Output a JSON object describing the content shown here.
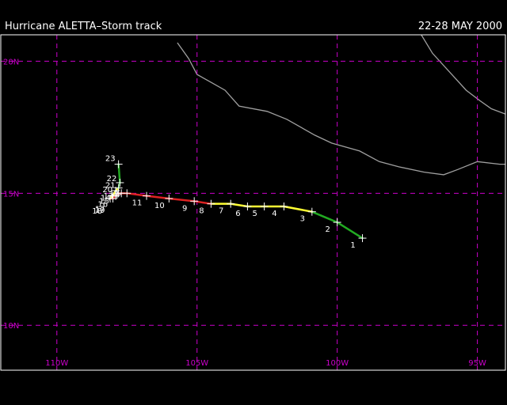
{
  "header": {
    "title": "Hurricane ALETTA–Storm track",
    "dates": "22-28 MAY 2000"
  },
  "colors": {
    "background": "#000000",
    "gridline": "#cc00cc",
    "coast": "#a0a0a0",
    "frame": "#ffffff",
    "text": "#ffffff",
    "tropical_depression": "#22aa22",
    "tropical_storm": "#ffff33",
    "hurricane": "#dd2222"
  },
  "map": {
    "lon_range": [
      -112,
      -94
    ],
    "lat_range": [
      8.3,
      21.0
    ],
    "lat_lines": [
      {
        "value": 20,
        "label": "20N"
      },
      {
        "value": 15,
        "label": "15N"
      },
      {
        "value": 10,
        "label": "10N"
      }
    ],
    "lon_lines": [
      {
        "value": -110,
        "label": "110W"
      },
      {
        "value": -105,
        "label": "105W"
      },
      {
        "value": -100,
        "label": "100W"
      },
      {
        "value": -95,
        "label": "95W"
      }
    ]
  },
  "coastlines": [
    [
      [
        -105.7,
        20.7
      ],
      [
        -105.3,
        20.1
      ],
      [
        -105.0,
        19.5
      ],
      [
        -104.5,
        19.2
      ],
      [
        -104.0,
        18.9
      ],
      [
        -103.5,
        18.3
      ],
      [
        -102.5,
        18.1
      ],
      [
        -101.8,
        17.8
      ],
      [
        -100.8,
        17.2
      ],
      [
        -100.2,
        16.9
      ],
      [
        -99.2,
        16.6
      ],
      [
        -98.5,
        16.2
      ],
      [
        -97.8,
        16.0
      ],
      [
        -96.9,
        15.8
      ],
      [
        -96.2,
        15.7
      ],
      [
        -95.7,
        15.9
      ],
      [
        -95.0,
        16.2
      ],
      [
        -94.2,
        16.1
      ],
      [
        -94.0,
        16.1
      ]
    ],
    [
      [
        -97.0,
        21.0
      ],
      [
        -96.6,
        20.3
      ],
      [
        -96.0,
        19.6
      ],
      [
        -95.4,
        18.9
      ],
      [
        -94.9,
        18.5
      ],
      [
        -94.5,
        18.2
      ],
      [
        -94.0,
        18.0
      ]
    ]
  ],
  "track": [
    {
      "n": "1",
      "lon": -99.1,
      "lat": 13.3,
      "status": "tropical_depression"
    },
    {
      "n": "2",
      "lon": -100.0,
      "lat": 13.9,
      "status": "tropical_depression"
    },
    {
      "n": "3",
      "lon": -100.9,
      "lat": 14.3,
      "status": "tropical_depression"
    },
    {
      "n": "4",
      "lon": -101.9,
      "lat": 14.5,
      "status": "tropical_storm"
    },
    {
      "n": "5",
      "lon": -102.6,
      "lat": 14.5,
      "status": "tropical_storm"
    },
    {
      "n": "6",
      "lon": -103.2,
      "lat": 14.5,
      "status": "tropical_storm"
    },
    {
      "n": "7",
      "lon": -103.8,
      "lat": 14.6,
      "status": "tropical_storm"
    },
    {
      "n": "8",
      "lon": -104.5,
      "lat": 14.6,
      "status": "tropical_storm"
    },
    {
      "n": "9",
      "lon": -105.1,
      "lat": 14.7,
      "status": "hurricane"
    },
    {
      "n": "10",
      "lon": -106.0,
      "lat": 14.8,
      "status": "hurricane"
    },
    {
      "n": "11",
      "lon": -106.8,
      "lat": 14.9,
      "status": "hurricane"
    },
    {
      "n": "12",
      "lon": -107.5,
      "lat": 15.0,
      "status": "hurricane"
    },
    {
      "n": "13",
      "lon": -107.7,
      "lat": 15.0,
      "status": "hurricane"
    },
    {
      "n": "14",
      "lon": -107.8,
      "lat": 15.0,
      "status": "hurricane"
    },
    {
      "n": "15",
      "lon": -107.85,
      "lat": 14.95,
      "status": "hurricane"
    },
    {
      "n": "16",
      "lon": -107.9,
      "lat": 14.9,
      "status": "hurricane"
    },
    {
      "n": "17",
      "lon": -108.0,
      "lat": 14.8,
      "status": "hurricane"
    },
    {
      "n": "18",
      "lon": -108.1,
      "lat": 14.8,
      "status": "hurricane"
    },
    {
      "n": "19",
      "lon": -108.0,
      "lat": 14.9,
      "status": "tropical_storm"
    },
    {
      "n": "20",
      "lon": -107.9,
      "lat": 15.1,
      "status": "tropical_storm"
    },
    {
      "n": "21",
      "lon": -107.8,
      "lat": 15.2,
      "status": "tropical_storm"
    },
    {
      "n": "22",
      "lon": -107.75,
      "lat": 15.4,
      "status": "tropical_depression"
    },
    {
      "n": "23",
      "lon": -107.8,
      "lat": 16.1,
      "status": "tropical_depression"
    }
  ]
}
